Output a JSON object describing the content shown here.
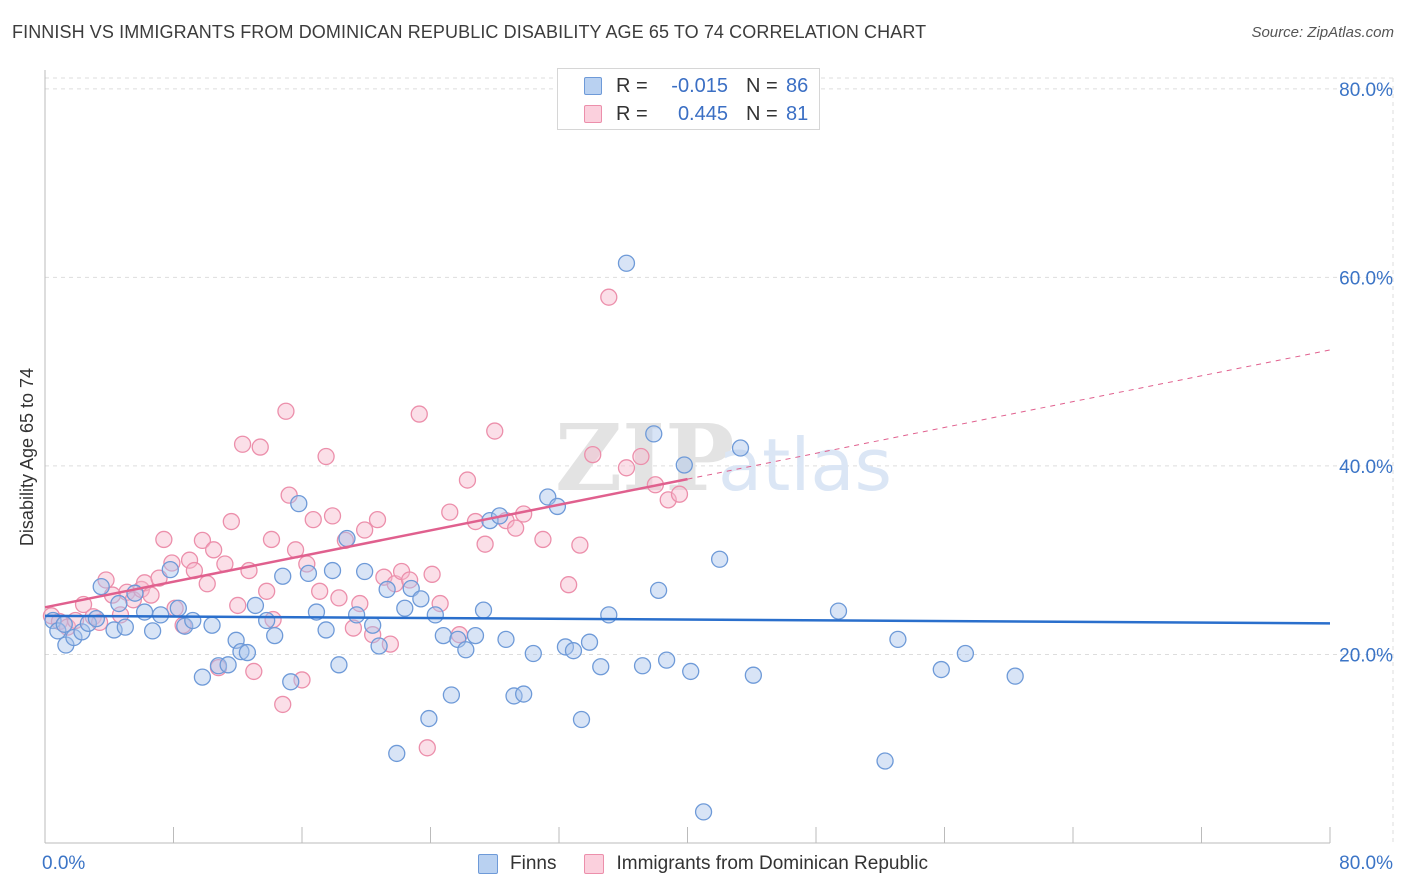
{
  "header": {
    "title": "FINNISH VS IMMIGRANTS FROM DOMINICAN REPUBLIC DISABILITY AGE 65 TO 74 CORRELATION CHART",
    "source": "Source: ZipAtlas.com"
  },
  "watermark": {
    "zip": "ZIP",
    "atlas": "atlas"
  },
  "colors": {
    "finns": "#a9c4ec",
    "finns_stroke": "#6e9ad8",
    "finns_line": "#2a6fcc",
    "dom": "#f6b8cb",
    "dom_stroke": "#ec8fab",
    "dom_line": "#e0608e",
    "axis_text": "#3b74c6",
    "grid": "#dddddd"
  },
  "legend": {
    "rows": [
      {
        "r_label": "R =",
        "r_value": "-0.015",
        "n_label": "N =",
        "n_value": "86"
      },
      {
        "r_label": "R =",
        "r_value": "0.445",
        "n_label": "N =",
        "n_value": "81"
      }
    ]
  },
  "bottom_legend": {
    "finns": "Finns",
    "dom": "Immigrants from Dominican Republic"
  },
  "chart_data": {
    "type": "scatter",
    "xlabel": "",
    "ylabel": "Disability Age 65 to 74",
    "xlim": [
      0,
      80
    ],
    "ylim": [
      0,
      82
    ],
    "x_tick_labels": [
      "0.0%",
      "80.0%"
    ],
    "y_ticks": [
      20,
      40,
      60,
      80
    ],
    "y_tick_labels": [
      "20.0%",
      "40.0%",
      "60.0%",
      "80.0%"
    ],
    "series": [
      {
        "name": "Finns",
        "trend": {
          "x0": 0,
          "y0": 24.1,
          "x1": 80,
          "y1": 23.3
        },
        "points": [
          [
            0.5,
            23.6
          ],
          [
            0.8,
            22.5
          ],
          [
            1.2,
            23.2
          ],
          [
            1.3,
            21.0
          ],
          [
            1.8,
            21.8
          ],
          [
            2.3,
            22.4
          ],
          [
            2.7,
            23.3
          ],
          [
            3.2,
            23.8
          ],
          [
            3.5,
            27.2
          ],
          [
            4.3,
            22.6
          ],
          [
            4.6,
            25.4
          ],
          [
            5.0,
            22.9
          ],
          [
            5.6,
            26.5
          ],
          [
            6.2,
            24.5
          ],
          [
            6.7,
            22.5
          ],
          [
            7.2,
            24.2
          ],
          [
            7.8,
            29.0
          ],
          [
            8.3,
            24.9
          ],
          [
            8.7,
            23.0
          ],
          [
            9.2,
            23.6
          ],
          [
            9.8,
            17.6
          ],
          [
            10.4,
            23.1
          ],
          [
            10.8,
            18.8
          ],
          [
            11.4,
            18.9
          ],
          [
            11.9,
            21.5
          ],
          [
            12.2,
            20.3
          ],
          [
            12.6,
            20.2
          ],
          [
            13.1,
            25.2
          ],
          [
            13.8,
            23.6
          ],
          [
            14.3,
            22.0
          ],
          [
            14.8,
            28.3
          ],
          [
            15.3,
            17.1
          ],
          [
            15.8,
            36.0
          ],
          [
            16.4,
            28.6
          ],
          [
            16.9,
            24.5
          ],
          [
            17.5,
            22.6
          ],
          [
            17.9,
            28.9
          ],
          [
            18.3,
            18.9
          ],
          [
            18.8,
            32.3
          ],
          [
            19.4,
            24.2
          ],
          [
            19.9,
            28.8
          ],
          [
            20.4,
            23.1
          ],
          [
            20.8,
            20.9
          ],
          [
            21.3,
            26.9
          ],
          [
            21.9,
            9.5
          ],
          [
            22.4,
            24.9
          ],
          [
            22.8,
            27.0
          ],
          [
            23.4,
            25.9
          ],
          [
            23.9,
            13.2
          ],
          [
            24.3,
            24.2
          ],
          [
            24.8,
            22.0
          ],
          [
            25.3,
            15.7
          ],
          [
            25.7,
            21.6
          ],
          [
            26.2,
            20.5
          ],
          [
            26.8,
            22.0
          ],
          [
            27.3,
            24.7
          ],
          [
            27.7,
            34.2
          ],
          [
            28.3,
            34.7
          ],
          [
            28.7,
            21.6
          ],
          [
            29.2,
            15.6
          ],
          [
            29.8,
            15.8
          ],
          [
            30.4,
            20.1
          ],
          [
            31.3,
            36.7
          ],
          [
            31.9,
            35.7
          ],
          [
            32.4,
            20.8
          ],
          [
            32.9,
            20.4
          ],
          [
            33.4,
            13.1
          ],
          [
            33.9,
            21.3
          ],
          [
            34.6,
            18.7
          ],
          [
            35.1,
            24.2
          ],
          [
            36.2,
            61.5
          ],
          [
            37.2,
            18.8
          ],
          [
            37.9,
            43.4
          ],
          [
            38.2,
            26.8
          ],
          [
            38.7,
            19.4
          ],
          [
            39.8,
            40.1
          ],
          [
            40.2,
            18.2
          ],
          [
            41.0,
            3.3
          ],
          [
            42.0,
            30.1
          ],
          [
            43.3,
            41.9
          ],
          [
            44.1,
            17.8
          ],
          [
            49.4,
            24.6
          ],
          [
            52.3,
            8.7
          ],
          [
            53.1,
            21.6
          ],
          [
            55.8,
            18.4
          ],
          [
            57.3,
            20.1
          ],
          [
            60.4,
            17.7
          ]
        ]
      },
      {
        "name": "Immigrants from Dominican Republic",
        "trend": {
          "x0": 0,
          "y0": 25.0,
          "x1": 40,
          "y1": 38.6,
          "dash_to_x": 80,
          "dash_to_y": 52.3
        },
        "points": [
          [
            0.4,
            24.1
          ],
          [
            0.9,
            23.5
          ],
          [
            1.4,
            22.9
          ],
          [
            1.9,
            23.6
          ],
          [
            2.4,
            25.3
          ],
          [
            3.0,
            24.0
          ],
          [
            3.4,
            23.4
          ],
          [
            3.8,
            27.9
          ],
          [
            4.2,
            26.3
          ],
          [
            4.7,
            24.2
          ],
          [
            5.1,
            26.6
          ],
          [
            5.5,
            25.8
          ],
          [
            6.0,
            26.9
          ],
          [
            6.2,
            27.6
          ],
          [
            6.6,
            26.3
          ],
          [
            7.1,
            28.1
          ],
          [
            7.4,
            32.2
          ],
          [
            7.9,
            29.7
          ],
          [
            8.1,
            24.9
          ],
          [
            8.6,
            23.1
          ],
          [
            9.0,
            30.0
          ],
          [
            9.3,
            28.9
          ],
          [
            9.8,
            32.1
          ],
          [
            10.1,
            27.5
          ],
          [
            10.5,
            31.1
          ],
          [
            10.8,
            18.6
          ],
          [
            11.2,
            29.6
          ],
          [
            11.6,
            34.1
          ],
          [
            12.0,
            25.2
          ],
          [
            12.3,
            42.3
          ],
          [
            12.7,
            28.9
          ],
          [
            13.0,
            18.2
          ],
          [
            13.4,
            42.0
          ],
          [
            13.8,
            26.7
          ],
          [
            14.1,
            32.2
          ],
          [
            14.2,
            23.7
          ],
          [
            14.8,
            14.7
          ],
          [
            15.0,
            45.8
          ],
          [
            15.2,
            36.9
          ],
          [
            15.6,
            31.1
          ],
          [
            16.0,
            17.3
          ],
          [
            16.3,
            29.6
          ],
          [
            16.7,
            34.3
          ],
          [
            17.1,
            26.7
          ],
          [
            17.5,
            41.0
          ],
          [
            17.9,
            34.7
          ],
          [
            18.3,
            26.0
          ],
          [
            18.7,
            32.1
          ],
          [
            19.2,
            22.8
          ],
          [
            19.6,
            25.4
          ],
          [
            19.9,
            33.2
          ],
          [
            20.4,
            22.1
          ],
          [
            20.7,
            34.3
          ],
          [
            21.1,
            28.2
          ],
          [
            21.5,
            21.1
          ],
          [
            21.8,
            27.5
          ],
          [
            22.2,
            28.8
          ],
          [
            22.7,
            27.9
          ],
          [
            23.3,
            45.5
          ],
          [
            23.8,
            10.1
          ],
          [
            24.1,
            28.5
          ],
          [
            24.6,
            25.4
          ],
          [
            25.2,
            35.1
          ],
          [
            25.8,
            22.1
          ],
          [
            26.3,
            38.5
          ],
          [
            26.8,
            34.1
          ],
          [
            27.4,
            31.7
          ],
          [
            28.0,
            43.7
          ],
          [
            28.7,
            34.2
          ],
          [
            29.3,
            33.4
          ],
          [
            29.8,
            34.9
          ],
          [
            31.0,
            32.2
          ],
          [
            32.6,
            27.4
          ],
          [
            33.3,
            31.6
          ],
          [
            34.1,
            41.2
          ],
          [
            35.1,
            57.9
          ],
          [
            36.2,
            39.8
          ],
          [
            37.1,
            41.0
          ],
          [
            38.0,
            38.0
          ],
          [
            38.8,
            36.4
          ],
          [
            39.5,
            37.0
          ]
        ]
      }
    ]
  }
}
